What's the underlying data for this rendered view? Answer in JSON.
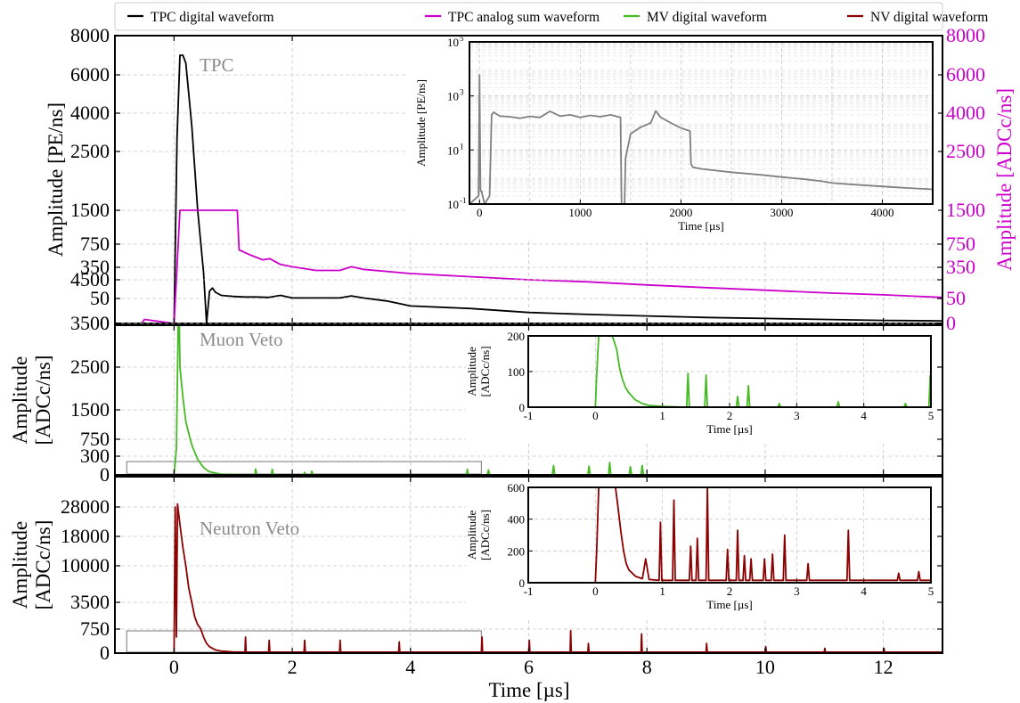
{
  "chart_data": {
    "type": "line",
    "legend": {
      "placement": "top",
      "entries": [
        {
          "label": "TPC digital waveform",
          "color": "#000000"
        },
        {
          "label": "TPC analog sum waveform",
          "color": "#cc00cc"
        },
        {
          "label": "MV digital waveform",
          "color": "#44bb22"
        },
        {
          "label": "NV digital waveform",
          "color": "#8b0000"
        }
      ]
    },
    "xlabel": "Time [µs]",
    "xlim": [
      -1,
      13
    ],
    "xticks": [
      "0",
      "2",
      "4",
      "6",
      "8",
      "10",
      "12"
    ],
    "panels": [
      {
        "id": "tpc",
        "title": "TPC",
        "ylabel": "Amplitude [PE/ns]",
        "ylabel_right": "Amplitude [ADCc/ns]",
        "scale": "compressed",
        "yticks": [
          "0",
          "50",
          "350",
          "750",
          "1500",
          "2500",
          "4000",
          "6000",
          "8000"
        ],
        "yticks_right": [
          "0",
          "50",
          "350",
          "750",
          "1500",
          "2500",
          "4000",
          "6000",
          "8000"
        ],
        "ylim": [
          0,
          8000
        ],
        "series": [
          {
            "color": "#000000",
            "x": [
              -1,
              0.0,
              0.05,
              0.1,
              0.15,
              0.2,
              0.25,
              0.3,
              0.4,
              0.5,
              0.55,
              0.6,
              0.65,
              0.7,
              0.8,
              1.0,
              1.2,
              1.4,
              1.6,
              1.8,
              2.0,
              2.4,
              2.8,
              3.0,
              3.2,
              3.6,
              4.0,
              5.0,
              6.0,
              7.0,
              8.0,
              9.0,
              10.0,
              11.0,
              12.0,
              13.0
            ],
            "y": [
              0,
              0,
              3000,
              7000,
              7000,
              6600,
              5000,
              3500,
              1500,
              300,
              0,
              120,
              150,
              110,
              80,
              70,
              65,
              65,
              60,
              80,
              55,
              55,
              55,
              75,
              55,
              45,
              35,
              30,
              22,
              18,
              15,
              12,
              10,
              8,
              6,
              5
            ]
          },
          {
            "color": "#cc00cc",
            "x": [
              -0.8,
              -0.55,
              -0.5,
              0.0,
              0.1,
              0.2,
              0.6,
              1.07,
              1.1,
              1.3,
              1.5,
              1.62,
              1.8,
              2.0,
              2.4,
              2.8,
              3.0,
              3.2,
              4.0,
              5.0,
              6.0,
              7.0,
              8.0,
              9.0,
              10.0,
              11.0,
              12.0,
              13.0
            ],
            "y": [
              0,
              0,
              8,
              0,
              1500,
              1500,
              1500,
              1500,
              650,
              560,
              480,
              500,
              400,
              360,
              320,
              320,
              360,
              330,
              290,
              260,
              230,
              210,
              180,
              155,
              130,
              105,
              85,
              60
            ]
          }
        ],
        "inset": {
          "ylabel": "Amplitude [PE/ns]",
          "xlabel": "Time [µs]",
          "yscale": "log",
          "xlim": [
            -100,
            4500
          ],
          "ylim": [
            0.1,
            100000
          ],
          "xticks": [
            "0",
            "1000",
            "2000",
            "3000",
            "4000"
          ],
          "yticks": [
            "10",
            "10",
            "10",
            "10"
          ],
          "ytick_exponents": [
            "-1",
            "1",
            "3",
            "5"
          ],
          "series": [
            {
              "color": "#808080",
              "x": [
                -100,
                -10,
                0,
                10,
                20,
                30,
                50,
                100,
                120,
                140,
                200,
                300,
                400,
                500,
                600,
                700,
                800,
                900,
                1000,
                1100,
                1200,
                1300,
                1400,
                1410,
                1420,
                1440,
                1450,
                1500,
                1600,
                1700,
                1750,
                1800,
                1900,
                2000,
                2090,
                2100,
                2120,
                2200,
                2500,
                2800,
                3000,
                3200,
                3400,
                3500,
                3800,
                4000,
                4200,
                4500
              ],
              "y": [
                0.1,
                0.2,
                6000,
                0.3,
                0.3,
                0.2,
                0.1,
                0.2,
                200,
                250,
                180,
                170,
                150,
                175,
                160,
                270,
                180,
                200,
                160,
                190,
                170,
                200,
                160,
                0.1,
                0.1,
                0.1,
                5,
                40,
                70,
                100,
                280,
                160,
                100,
                65,
                50,
                3,
                2.3,
                2.0,
                1.5,
                1.2,
                1.0,
                0.85,
                0.7,
                0.6,
                0.5,
                0.45,
                0.4,
                0.35
              ]
            }
          ]
        }
      },
      {
        "id": "mv",
        "title": "Muon Veto",
        "ylabel": "Amplitude [ADCc/ns]",
        "scale": "compressed",
        "yticks": [
          "0",
          "300",
          "750",
          "1500",
          "2500",
          "3500",
          "4500"
        ],
        "ylim": [
          0,
          4500
        ],
        "series": [
          {
            "color": "#44bb22",
            "x": [
              0.0,
              0.04,
              0.08,
              0.1,
              0.15,
              0.2,
              0.25,
              0.3,
              0.35,
              0.4,
              0.45,
              0.5,
              0.55,
              0.6,
              0.7,
              0.8,
              1.37,
              1.38,
              1.4,
              1.65,
              1.66,
              1.68,
              2.2,
              2.21,
              2.23,
              2.32,
              2.33,
              2.35,
              3.6,
              3.61,
              3.63,
              4.95,
              4.96,
              4.98,
              5.3,
              5.32,
              5.34,
              6.4,
              6.42,
              6.44,
              7.0,
              7.02,
              7.04,
              7.35,
              7.37,
              7.39,
              7.7,
              7.72,
              7.74,
              7.9,
              7.92,
              7.94
            ],
            "y": [
              0,
              500,
              4400,
              2500,
              1800,
              1200,
              900,
              600,
              400,
              250,
              180,
              120,
              80,
              50,
              30,
              10,
              0,
              95,
              0,
              0,
              90,
              0,
              0,
              40,
              0,
              0,
              60,
              0,
              0,
              10,
              0,
              0,
              90,
              0,
              0,
              80,
              0,
              0,
              150,
              0,
              0,
              140,
              0,
              0,
              200,
              0,
              0,
              130,
              0,
              0,
              150,
              0
            ]
          }
        ],
        "inset": {
          "ylabel": "Amplitude [ADCc/ns]",
          "xlabel": "Time [µs]",
          "xlim": [
            -1,
            5
          ],
          "ylim": [
            0,
            200
          ],
          "xticks": [
            "-1",
            "0",
            "1",
            "2",
            "3",
            "4",
            "5"
          ],
          "yticks": [
            "0",
            "100",
            "200"
          ],
          "series": [
            {
              "color": "#44bb22",
              "x": [
                -1,
                0.0,
                0.02,
                0.05,
                0.25,
                0.28,
                0.32,
                0.36,
                0.4,
                0.45,
                0.5,
                0.6,
                0.7,
                0.8,
                1.0,
                1.36,
                1.38,
                1.4,
                1.63,
                1.65,
                1.67,
                2.1,
                2.12,
                2.14,
                2.26,
                2.28,
                2.3,
                2.72,
                2.74,
                2.76,
                3.6,
                3.62,
                3.64,
                4.6,
                4.62,
                4.64,
                4.97,
                4.99,
                5.0
              ],
              "y": [
                0,
                0,
                90,
                200,
                200,
                185,
                160,
                110,
                80,
                55,
                40,
                20,
                10,
                5,
                2,
                0,
                95,
                0,
                0,
                90,
                0,
                0,
                30,
                0,
                0,
                60,
                0,
                0,
                10,
                0,
                0,
                15,
                0,
                0,
                10,
                0,
                0,
                90,
                0
              ]
            }
          ]
        }
      },
      {
        "id": "nv",
        "title": "Neutron Veto",
        "ylabel": "Amplitude [ADCc/ns]",
        "scale": "compressed",
        "yticks": [
          "0",
          "750",
          "3500",
          "10000",
          "18000",
          "28000"
        ],
        "ylim": [
          0,
          30000
        ],
        "series": [
          {
            "color": "#8b0000",
            "x": [
              0.0,
              0.02,
              0.04,
              0.06,
              0.1,
              0.15,
              0.2,
              0.25,
              0.3,
              0.35,
              0.4,
              0.45,
              0.5,
              0.55,
              0.6,
              0.7,
              0.8,
              1.0,
              1.2,
              1.21,
              1.22,
              1.6,
              1.61,
              1.62,
              2.2,
              2.21,
              2.22,
              2.8,
              2.81,
              2.82,
              3.8,
              3.81,
              3.82,
              5.2,
              5.21,
              5.22,
              6.0,
              6.01,
              6.02,
              6.7,
              6.71,
              6.72,
              7.0,
              7.01,
              7.02,
              7.9,
              7.91,
              7.92,
              9.0,
              9.01,
              9.02,
              10.0,
              10.01,
              10.02,
              11.0,
              11.01,
              11.02,
              12.0,
              12.01,
              12.02,
              13.0
            ],
            "y": [
              0,
              28000,
              500,
              29000,
              22000,
              15000,
              10000,
              6000,
              3500,
              2000,
              1200,
              800,
              500,
              300,
              200,
              100,
              60,
              40,
              30,
              500,
              30,
              30,
              400,
              30,
              30,
              400,
              30,
              30,
              400,
              30,
              30,
              350,
              30,
              30,
              500,
              30,
              30,
              400,
              30,
              30,
              700,
              30,
              30,
              300,
              30,
              30,
              600,
              30,
              30,
              300,
              30,
              30,
              200,
              30,
              30,
              150,
              30,
              30,
              150,
              30,
              30
            ]
          }
        ],
        "inset": {
          "ylabel": "Amplitude [ADCc/ns]",
          "xlabel": "Time [µs]",
          "xlim": [
            -1,
            5
          ],
          "ylim": [
            0,
            600
          ],
          "xticks": [
            "-1",
            "0",
            "1",
            "2",
            "3",
            "4",
            "5"
          ],
          "yticks": [
            "0",
            "200",
            "400",
            "600"
          ],
          "series": [
            {
              "color": "#8b0000",
              "x": [
                -1,
                0.0,
                0.02,
                0.05,
                0.3,
                0.33,
                0.38,
                0.42,
                0.46,
                0.5,
                0.55,
                0.6,
                0.7,
                0.75,
                0.8,
                0.95,
                0.97,
                0.99,
                1.15,
                1.17,
                1.19,
                1.4,
                1.42,
                1.44,
                1.5,
                1.52,
                1.54,
                1.65,
                1.67,
                1.69,
                1.95,
                1.97,
                1.99,
                2.1,
                2.12,
                2.14,
                2.2,
                2.22,
                2.24,
                2.3,
                2.32,
                2.34,
                2.5,
                2.52,
                2.54,
                2.62,
                2.64,
                2.66,
                2.8,
                2.82,
                2.84,
                3.15,
                3.17,
                3.19,
                3.75,
                3.77,
                3.79,
                4.5,
                4.52,
                4.54,
                4.8,
                4.82,
                4.84,
                5.0
              ],
              "y": [
                0,
                0,
                200,
                600,
                600,
                500,
                320,
                200,
                120,
                80,
                60,
                40,
                25,
                150,
                20,
                15,
                380,
                15,
                15,
                520,
                15,
                15,
                230,
                15,
                15,
                280,
                15,
                15,
                600,
                15,
                15,
                210,
                15,
                15,
                330,
                15,
                15,
                170,
                15,
                15,
                150,
                15,
                15,
                150,
                15,
                15,
                180,
                15,
                15,
                300,
                15,
                15,
                120,
                15,
                15,
                330,
                15,
                15,
                60,
                15,
                15,
                70,
                15,
                15
              ]
            }
          ]
        }
      }
    ]
  }
}
